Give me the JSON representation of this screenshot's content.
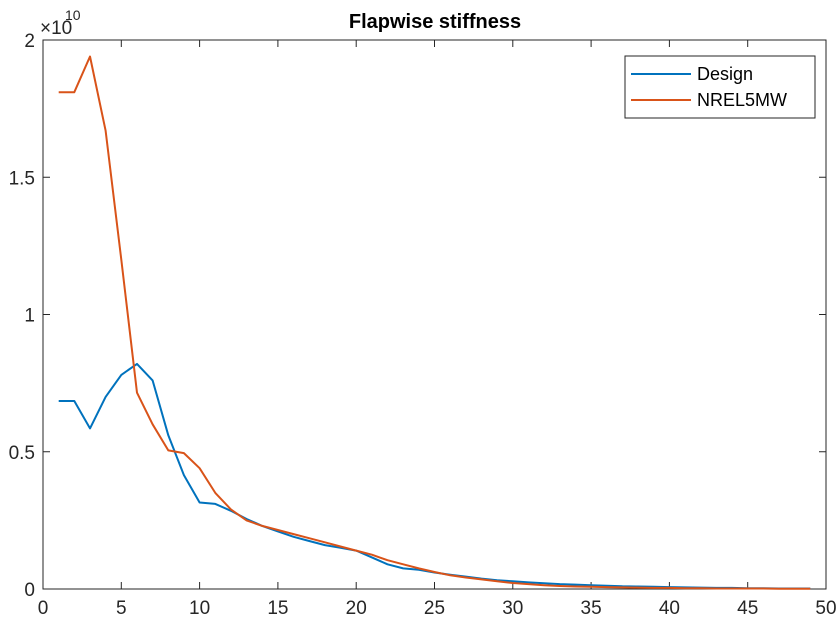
{
  "chart_data": {
    "type": "line",
    "title": "Flapwise stiffness",
    "xlabel": "",
    "ylabel": "",
    "xlim": [
      0,
      50
    ],
    "ylim": [
      0,
      2
    ],
    "y_multiplier_base": "×10",
    "y_multiplier_exp": "10",
    "xticks": [
      "0",
      "5",
      "10",
      "15",
      "20",
      "25",
      "30",
      "35",
      "40",
      "45",
      "50"
    ],
    "yticks": [
      "0",
      "0.5",
      "1",
      "1.5",
      "2"
    ],
    "grid": false,
    "legend_position": "top-right",
    "series": [
      {
        "name": "Design",
        "color": "#0072BD",
        "x": [
          1,
          2,
          3,
          4,
          5,
          6,
          7,
          8,
          9,
          10,
          11,
          12,
          13,
          14,
          15,
          16,
          17,
          18,
          19,
          20,
          21,
          22,
          23,
          24,
          25,
          26,
          27,
          28,
          29,
          30,
          31,
          32,
          33,
          34,
          35,
          36,
          37,
          38,
          39,
          40,
          41,
          42,
          43,
          44,
          45,
          46,
          47,
          48,
          49
        ],
        "values": [
          0.685,
          0.685,
          0.585,
          0.7,
          0.78,
          0.82,
          0.76,
          0.56,
          0.415,
          0.315,
          0.31,
          0.285,
          0.255,
          0.23,
          0.21,
          0.19,
          0.175,
          0.16,
          0.15,
          0.14,
          0.115,
          0.09,
          0.075,
          0.07,
          0.06,
          0.052,
          0.045,
          0.038,
          0.032,
          0.028,
          0.024,
          0.021,
          0.018,
          0.016,
          0.014,
          0.012,
          0.01,
          0.009,
          0.008,
          0.007,
          0.006,
          0.005,
          0.004,
          0.004,
          0.003,
          0.003,
          0.002,
          0.002,
          0.002
        ]
      },
      {
        "name": "NREL5MW",
        "color": "#D95319",
        "x": [
          1,
          2,
          3,
          4,
          5,
          6,
          7,
          8,
          9,
          10,
          11,
          12,
          13,
          14,
          15,
          16,
          17,
          18,
          19,
          20,
          21,
          22,
          23,
          24,
          25,
          26,
          27,
          28,
          29,
          30,
          31,
          32,
          33,
          34,
          35,
          36,
          37,
          38,
          39,
          40,
          41,
          42,
          43,
          44,
          45,
          46,
          47,
          48,
          49
        ],
        "values": [
          1.81,
          1.81,
          1.94,
          1.67,
          1.2,
          0.715,
          0.6,
          0.505,
          0.495,
          0.44,
          0.35,
          0.29,
          0.25,
          0.23,
          0.215,
          0.2,
          0.185,
          0.17,
          0.155,
          0.14,
          0.125,
          0.105,
          0.09,
          0.075,
          0.062,
          0.05,
          0.042,
          0.035,
          0.028,
          0.022,
          0.018,
          0.014,
          0.011,
          0.009,
          0.008,
          0.007,
          0.006,
          0.005,
          0.004,
          0.004,
          0.003,
          0.003,
          0.002,
          0.002,
          0.002,
          0.002,
          0.001,
          0.001,
          0.001
        ]
      }
    ]
  }
}
